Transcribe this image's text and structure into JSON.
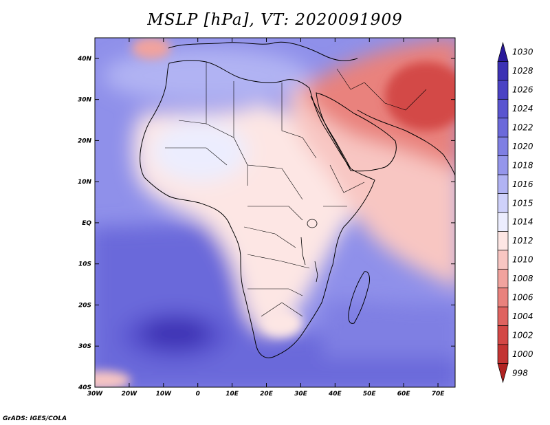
{
  "title": "MSLP [hPa], VT: 2020091909",
  "credit": "GrADS: IGES/COLA",
  "map": {
    "lon_range": [
      -30,
      75
    ],
    "lat_range": [
      -40,
      45
    ],
    "x_ticks": [
      {
        "lon": -30,
        "label": "30W"
      },
      {
        "lon": -20,
        "label": "20W"
      },
      {
        "lon": -10,
        "label": "10W"
      },
      {
        "lon": 0,
        "label": "0"
      },
      {
        "lon": 10,
        "label": "10E"
      },
      {
        "lon": 20,
        "label": "20E"
      },
      {
        "lon": 30,
        "label": "30E"
      },
      {
        "lon": 40,
        "label": "40E"
      },
      {
        "lon": 50,
        "label": "50E"
      },
      {
        "lon": 60,
        "label": "60E"
      },
      {
        "lon": 70,
        "label": "70E"
      }
    ],
    "y_ticks": [
      {
        "lat": 40,
        "label": "40N"
      },
      {
        "lat": 30,
        "label": "30N"
      },
      {
        "lat": 20,
        "label": "20N"
      },
      {
        "lat": 10,
        "label": "10N"
      },
      {
        "lat": 0,
        "label": "EQ"
      },
      {
        "lat": -10,
        "label": "10S"
      },
      {
        "lat": -20,
        "label": "20S"
      },
      {
        "lat": -30,
        "label": "30S"
      },
      {
        "lat": -40,
        "label": "40S"
      }
    ]
  },
  "colorbar": {
    "levels": [
      {
        "label": "1030",
        "color": "#2a1a9a"
      },
      {
        "label": "1028",
        "color": "#3c31b4"
      },
      {
        "label": "1026",
        "color": "#4a42c4"
      },
      {
        "label": "1024",
        "color": "#5a55d0"
      },
      {
        "label": "1022",
        "color": "#6b69da"
      },
      {
        "label": "1020",
        "color": "#7f7fe3"
      },
      {
        "label": "1018",
        "color": "#9596eb"
      },
      {
        "label": "1016",
        "color": "#b1b3f3"
      },
      {
        "label": "1015",
        "color": "#cfd1fa"
      },
      {
        "label": "1014",
        "color": "#ecedfe"
      },
      {
        "label": "1012",
        "color": "#fde6e4"
      },
      {
        "label": "1010",
        "color": "#f8c6c2"
      },
      {
        "label": "1008",
        "color": "#f1a39e"
      },
      {
        "label": "1006",
        "color": "#e9827d"
      },
      {
        "label": "1004",
        "color": "#df6360"
      },
      {
        "label": "1002",
        "color": "#d34846"
      },
      {
        "label": "1000",
        "color": "#c33433"
      },
      {
        "label": "998",
        "color": "#b02221"
      }
    ]
  },
  "colors": {
    "background_high": "#8f90ea",
    "ocean_south_high": "#6b69da",
    "anticyclone_core": "#3c31b4",
    "low_core": "#c33433",
    "coastline": "#000000"
  }
}
